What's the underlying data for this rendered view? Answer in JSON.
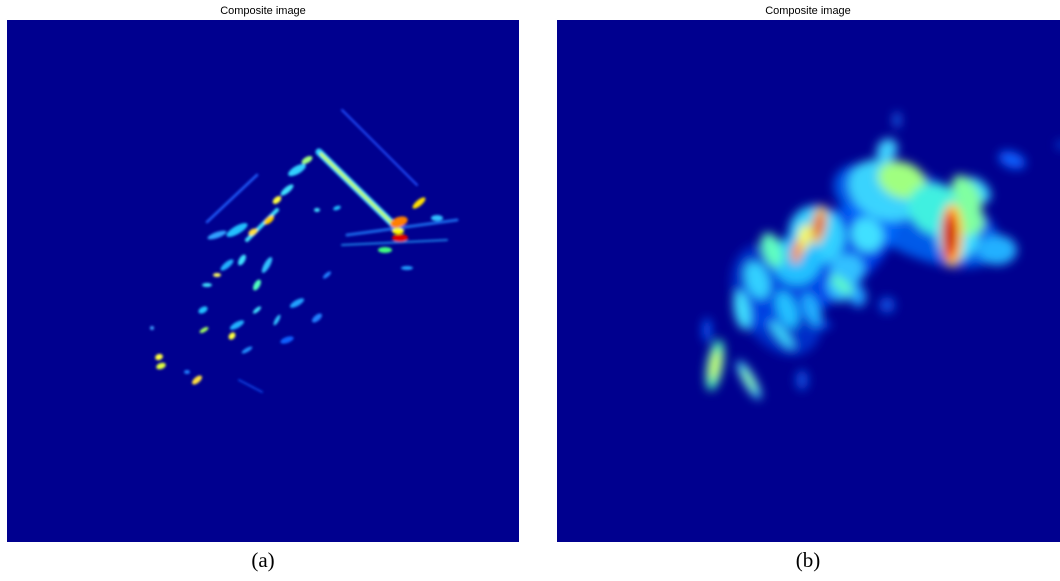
{
  "panels": [
    {
      "title": "Composite image",
      "caption": "(a)"
    },
    {
      "title": "Composite image",
      "caption": "(b)"
    }
  ]
}
